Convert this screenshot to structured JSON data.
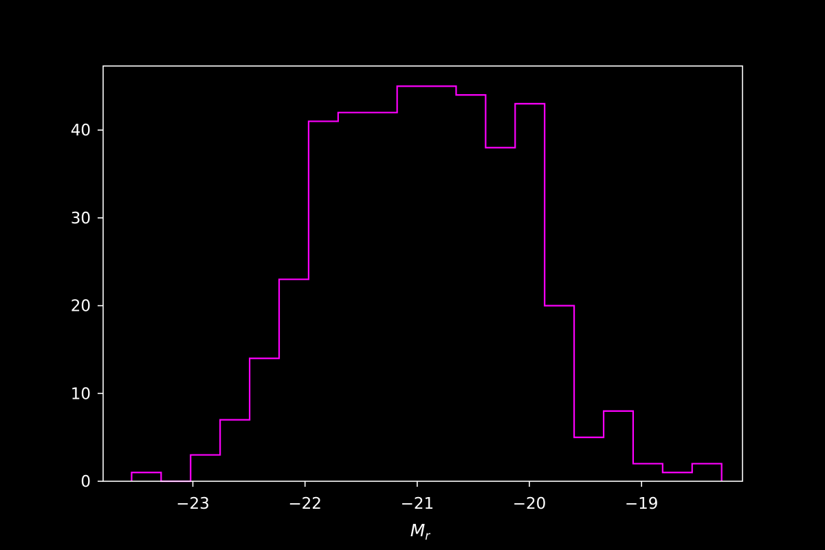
{
  "chart_data": {
    "type": "histogram",
    "title": "",
    "xlabel": "M",
    "xlabel_subscript": "r",
    "ylabel": "",
    "xlim": [
      -23.8,
      -18.1
    ],
    "ylim": [
      0,
      47.3
    ],
    "histtype": "step",
    "grid": false,
    "bin_edges": [
      -23.546,
      -23.283,
      -23.02,
      -22.757,
      -22.494,
      -22.231,
      -21.968,
      -21.705,
      -21.442,
      -21.179,
      -20.916,
      -20.653,
      -20.39,
      -20.127,
      -19.864,
      -19.601,
      -19.338,
      -19.075,
      -18.812,
      -18.549,
      -18.286
    ],
    "counts": [
      1,
      0,
      3,
      7,
      14,
      23,
      41,
      42,
      42,
      45,
      45,
      44,
      38,
      43,
      20,
      5,
      8,
      2,
      1,
      2
    ],
    "xticks": [
      -23,
      -22,
      -21,
      -20,
      -19
    ],
    "xtick_labels": [
      "−23",
      "−22",
      "−21",
      "−20",
      "−19"
    ],
    "yticks": [
      0,
      10,
      20,
      30,
      40
    ],
    "ytick_labels": [
      "0",
      "10",
      "20",
      "30",
      "40"
    ],
    "colors": {
      "background": "#000000",
      "axes": "#ffffff",
      "series": "#ff00ff"
    }
  }
}
